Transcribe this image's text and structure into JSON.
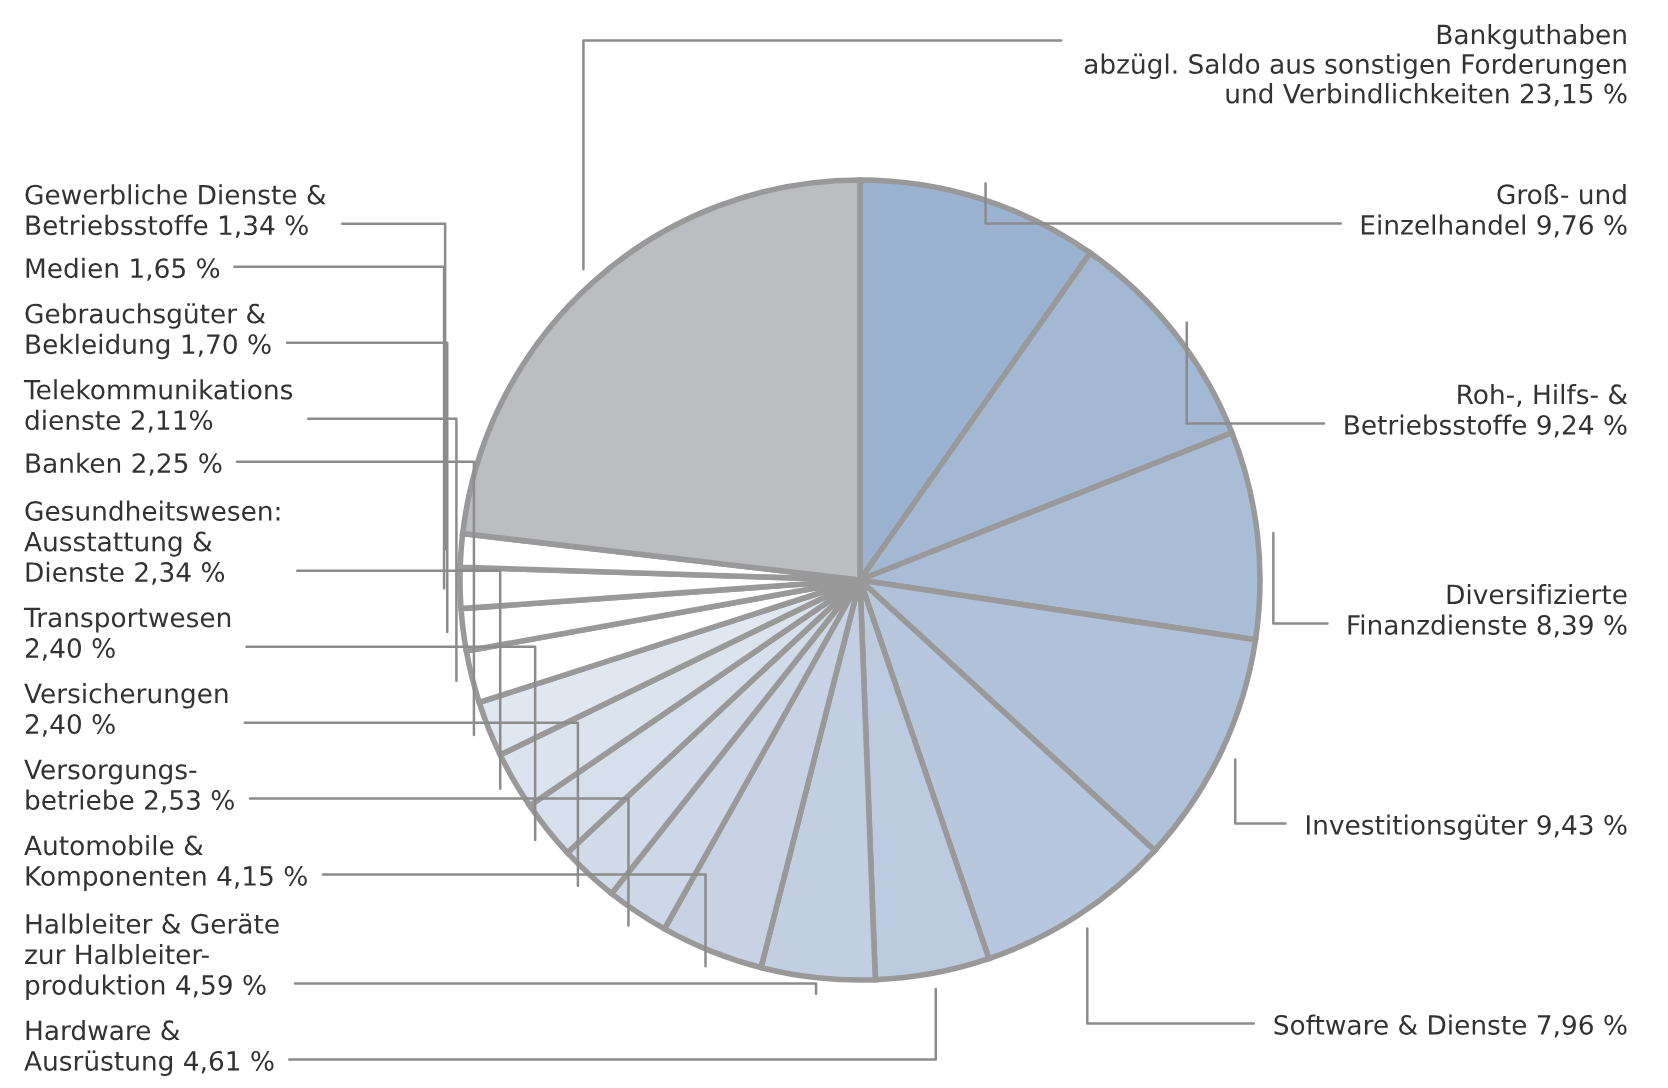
{
  "chart_data": {
    "type": "pie",
    "categories": [
      "Groß- und\nEinzelhandel 9,76 %",
      "Roh-, Hilfs- &\nBetriebsstoffe 9,24 %",
      "Diversifizierte\nFinanzdienste 8,39 %",
      "Investitionsgüter 9,43 %",
      "Software & Dienste 7,96 %",
      "Hardware &\nAusrüstung 4,61 %",
      "Halbleiter & Geräte\nzur Halbleiter-\nproduktion 4,59 %",
      "Automobile &\nKomponenten 4,15 %",
      "Versorgungs-\nbetriebe 2,53 %",
      "Versicherungen\n2,40 %",
      "Transportwesen\n2,40 %",
      "Gesundheitswesen:\nAusstattung &\nDienste 2,34 %",
      "Banken 2,25 %",
      "Telekommunikations\ndienste 2,11%",
      "Gebrauchsgüter &\nBekleidung 1,70 %",
      "Medien 1,65 %",
      "Gewerbliche Dienste &\nBetriebsstoffe 1,34 %",
      "Bankguthaben\nabzügl. Saldo aus sonstigen Forderungen\nund Verbindlichkeiten 23,15 %"
    ],
    "values": [
      9.76,
      9.24,
      8.39,
      9.43,
      7.96,
      4.61,
      4.59,
      4.15,
      2.53,
      2.4,
      2.4,
      2.34,
      2.25,
      2.11,
      1.7,
      1.65,
      1.34,
      23.15
    ],
    "colors": [
      "#9bb3d0",
      "#a2b8d3",
      "#a9bdd6",
      "#b0c2da",
      "#b7c7dd",
      "#bdcbe0",
      "#c2cfe2",
      "#c7d3e4",
      "#ccd7e7",
      "#d1dbe9",
      "#d6dfec",
      "#dbe3ee",
      "#e0e7f1",
      "#ffffff",
      "#ffffff",
      "#ffffff",
      "#ffffff",
      "#bcbdc1"
    ]
  }
}
